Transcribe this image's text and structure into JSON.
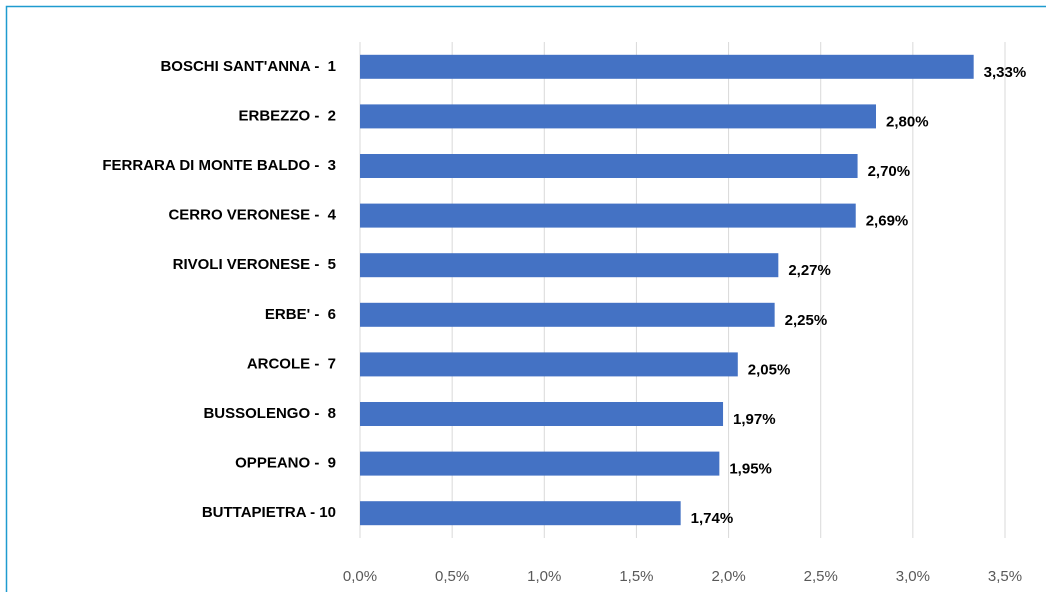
{
  "chart_data": {
    "type": "hbar",
    "categories": [
      "BOSCHI SANT'ANNA -  1",
      "ERBEZZO -  2",
      "FERRARA DI MONTE BALDO -  3",
      "CERRO VERONESE -  4",
      "RIVOLI VERONESE -  5",
      "ERBE' -  6",
      "ARCOLE -  7",
      "BUSSOLENGO -  8",
      "OPPEANO -  9",
      "BUTTAPIETRA - 10"
    ],
    "values": [
      3.33,
      2.8,
      2.7,
      2.69,
      2.27,
      2.25,
      2.05,
      1.97,
      1.95,
      1.74
    ],
    "value_labels": [
      "3,33%",
      "2,80%",
      "2,70%",
      "2,69%",
      "2,27%",
      "2,25%",
      "2,05%",
      "1,97%",
      "1,95%",
      "1,74%"
    ],
    "color": "#4472c4",
    "xlim": [
      0,
      3.5
    ],
    "xticks": [
      {
        "value": 0,
        "label": "0,0%"
      },
      {
        "value": 0.5,
        "label": "0,5%"
      },
      {
        "value": 1,
        "label": "1,0%"
      },
      {
        "value": 1.5,
        "label": "1,5%"
      },
      {
        "value": 2,
        "label": "2,0%"
      },
      {
        "value": 2.5,
        "label": "2,5%"
      },
      {
        "value": 3,
        "label": "3,0%"
      },
      {
        "value": 3.5,
        "label": "3,5%"
      }
    ],
    "grid": true
  }
}
